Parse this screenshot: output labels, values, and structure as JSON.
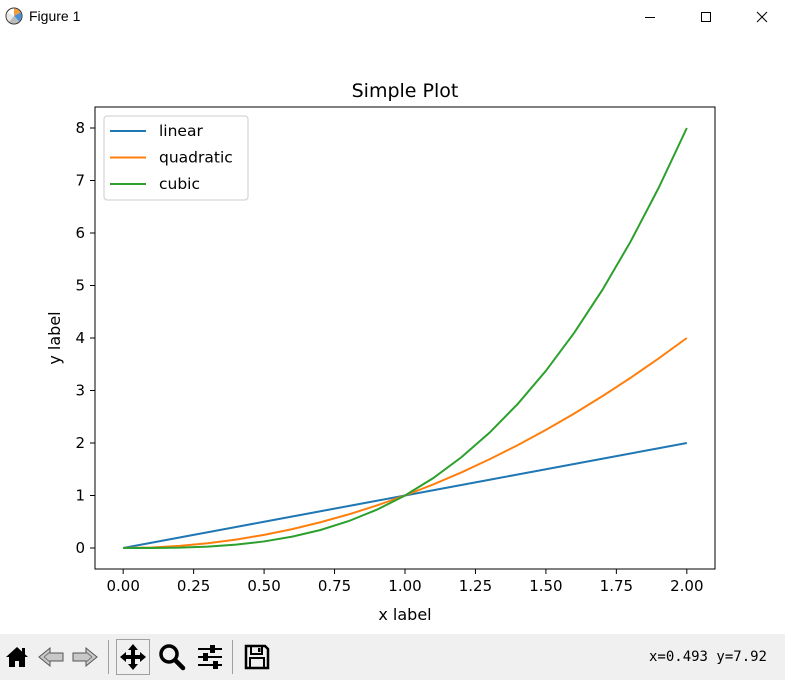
{
  "window": {
    "title": "Figure 1",
    "icons": [
      "app-icon",
      "minimize-icon",
      "maximize-icon",
      "close-icon"
    ]
  },
  "toolbar": {
    "buttons": [
      "home-icon",
      "back-icon",
      "forward-icon",
      "pan-icon",
      "zoom-icon",
      "configure-subplots-icon",
      "save-icon"
    ],
    "coords": "x=0.493  y=7.92"
  },
  "chart_data": {
    "type": "line",
    "title": "Simple Plot",
    "xlabel": "x label",
    "ylabel": "y label",
    "xlim": [
      -0.1,
      2.1
    ],
    "ylim": [
      -0.4,
      8.4
    ],
    "xticks": [
      "0.00",
      "0.25",
      "0.50",
      "0.75",
      "1.00",
      "1.25",
      "1.50",
      "1.75",
      "2.00"
    ],
    "yticks": [
      "0",
      "1",
      "2",
      "3",
      "4",
      "5",
      "6",
      "7",
      "8"
    ],
    "grid": false,
    "legend_position": "upper-left",
    "x": [
      0.0,
      0.1,
      0.2,
      0.3,
      0.4,
      0.5,
      0.6,
      0.7,
      0.8,
      0.9,
      1.0,
      1.1,
      1.2,
      1.3,
      1.4,
      1.5,
      1.6,
      1.7,
      1.8,
      1.9,
      2.0
    ],
    "series": [
      {
        "name": "linear",
        "color": "#1f77b4",
        "values": [
          0.0,
          0.1,
          0.2,
          0.3,
          0.4,
          0.5,
          0.6,
          0.7,
          0.8,
          0.9,
          1.0,
          1.1,
          1.2,
          1.3,
          1.4,
          1.5,
          1.6,
          1.7,
          1.8,
          1.9,
          2.0
        ]
      },
      {
        "name": "quadratic",
        "color": "#ff7f0e",
        "values": [
          0.0,
          0.01,
          0.04,
          0.09,
          0.16,
          0.25,
          0.36,
          0.49,
          0.64,
          0.81,
          1.0,
          1.21,
          1.44,
          1.69,
          1.96,
          2.25,
          2.56,
          2.89,
          3.24,
          3.61,
          4.0
        ]
      },
      {
        "name": "cubic",
        "color": "#2ca02c",
        "values": [
          0.0,
          0.001,
          0.008,
          0.027,
          0.064,
          0.125,
          0.216,
          0.343,
          0.512,
          0.729,
          1.0,
          1.331,
          1.728,
          2.197,
          2.744,
          3.375,
          4.096,
          4.913,
          5.832,
          6.859,
          8.0
        ]
      }
    ]
  }
}
